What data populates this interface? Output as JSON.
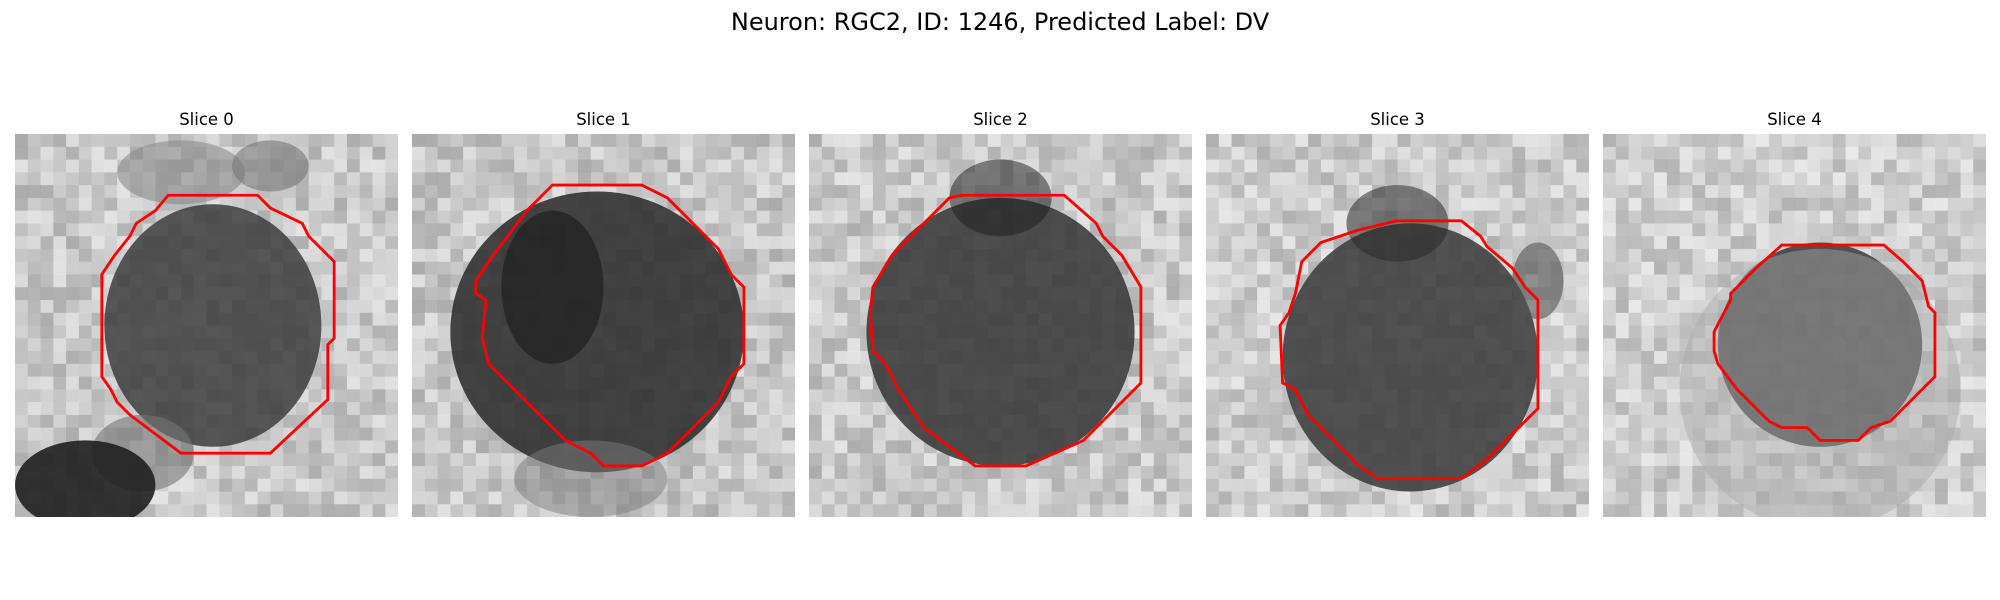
{
  "figure": {
    "title": "Neuron: RGC2, ID: 1246, Predicted Label: DV",
    "contour_color": "#ff0000"
  },
  "panels": [
    {
      "title": "Slice 0"
    },
    {
      "title": "Slice 1"
    },
    {
      "title": "Slice 2"
    },
    {
      "title": "Slice 3"
    },
    {
      "title": "Slice 4"
    }
  ]
}
